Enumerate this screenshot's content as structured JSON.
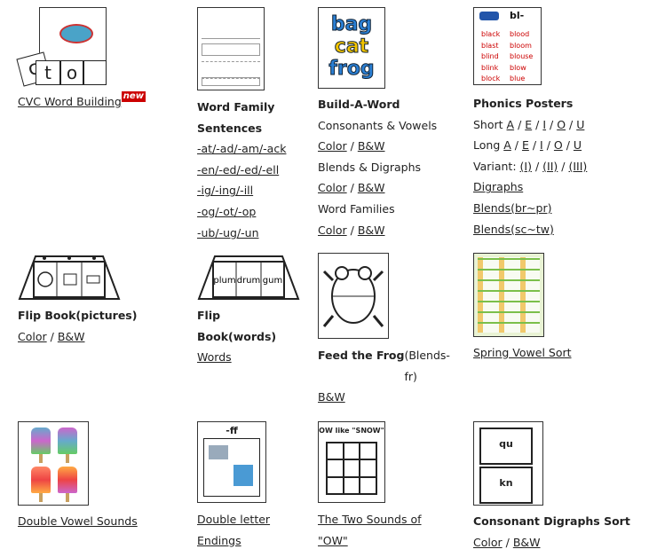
{
  "items": [
    {
      "title": "CVC Word Building",
      "badge": "new"
    },
    {
      "title": "Word Family Sentences",
      "links": [
        "-at/-ad/-am/-ack",
        "-en/-ed/-ed/-ell",
        "-ig/-ing/-ill",
        "-og/-ot/-op",
        "-ub/-ug/-un"
      ]
    },
    {
      "title": "Build-A-Word",
      "thumb_words": [
        "bag",
        "cat",
        "frog"
      ],
      "groups": [
        {
          "label": "Consonants & Vowels",
          "color": "Color",
          "bw": "B&W"
        },
        {
          "label": "Blends & Digraphs",
          "color": "Color",
          "bw": "B&W"
        },
        {
          "label": "Word Families",
          "color": "Color",
          "bw": "B&W"
        }
      ],
      "sep": "/"
    },
    {
      "title": "Phonics Posters",
      "short": "Short",
      "long": "Long",
      "vowels": [
        "A",
        "E",
        "I",
        "O",
        "U"
      ],
      "variant": "Variant:",
      "variants": [
        "(I)",
        "(II)",
        "(III)"
      ],
      "digraphs": "Digraphs",
      "blends1": "Blends(br~pr)",
      "blends2": "Blends(sc~tw)",
      "thumb_title": "bl-",
      "thumb_words": [
        "black",
        "blast",
        "blind",
        "blink",
        "block",
        "blood",
        "bloom",
        "blouse",
        "blow",
        "blue"
      ]
    },
    {
      "title": "Flip Book(pictures)",
      "color": "Color",
      "bw": "B&W"
    },
    {
      "title": "Flip Book(words)",
      "link": "Words",
      "thumb_words": [
        "plum",
        "drum",
        "gum"
      ]
    },
    {
      "title": "Feed the Frog",
      "subtitle": "(Blends-fr)",
      "bw": "B&W"
    },
    {
      "title": "Spring Vowel Sort"
    },
    {
      "title": "Double Vowel Sounds"
    },
    {
      "title": "Double letter Endings",
      "thumb_title": "-ff"
    },
    {
      "title": "The Two Sounds of \"OW\"",
      "thumb_title": "OW like \"SNOW\""
    },
    {
      "title": "Consonant Digraphs Sort",
      "color": "Color",
      "bw": "B&W",
      "thumb_words": [
        "qu",
        "kn"
      ]
    }
  ],
  "colors": {
    "badge": "#cc0000",
    "bag": "#2a7fd4",
    "cat": "#f2c400",
    "frog": "#2a7fd4"
  }
}
